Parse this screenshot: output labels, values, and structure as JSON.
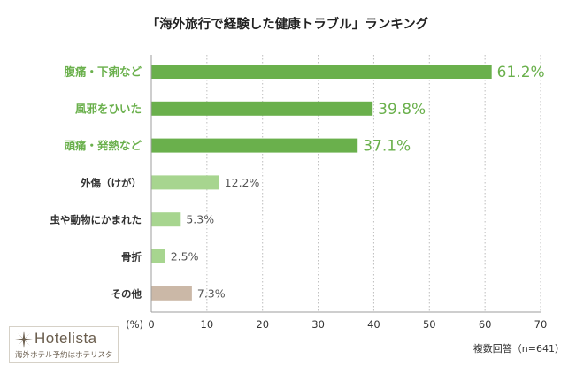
{
  "colors": {
    "accent_green": "#6ab04c",
    "light_green": "#a7d58f",
    "other_beige": "#cbb8a7",
    "gridline": "#bdbdbd",
    "axis": "#9e9e9e",
    "text_dark": "#333333",
    "value_gray": "#555555",
    "logo_brown": "#6a5d4d"
  },
  "branding": {
    "logo_icon": "sparkle-star-icon",
    "logo_name": "Hotelista",
    "tagline": "海外ホテル予約はホテリスタ"
  },
  "chart_data": {
    "type": "bar",
    "orientation": "horizontal",
    "title": "「海外旅行で経験した健康トラブル」ランキング",
    "categories": [
      "腹痛・下痢など",
      "風邪をひいた",
      "頭痛・発熱など",
      "外傷（けが）",
      "虫や動物にかまれた",
      "骨折",
      "その他"
    ],
    "values": [
      61.2,
      39.8,
      37.1,
      12.2,
      5.3,
      2.5,
      7.3
    ],
    "value_labels": [
      "61.2%",
      "39.8%",
      "37.1%",
      "12.2%",
      "5.3%",
      "2.5%",
      "7.3%"
    ],
    "highlight": [
      true,
      true,
      true,
      false,
      false,
      false,
      false
    ],
    "bar_colors": [
      "#6ab04c",
      "#6ab04c",
      "#6ab04c",
      "#a7d58f",
      "#a7d58f",
      "#a7d58f",
      "#cbb8a7"
    ],
    "x_unit_label": "(%)",
    "xlim": [
      0,
      70
    ],
    "xticks": [
      0,
      10,
      20,
      30,
      40,
      50,
      60,
      70
    ],
    "grid": "vertical-dotted",
    "footnote": "複数回答（n=641）"
  }
}
